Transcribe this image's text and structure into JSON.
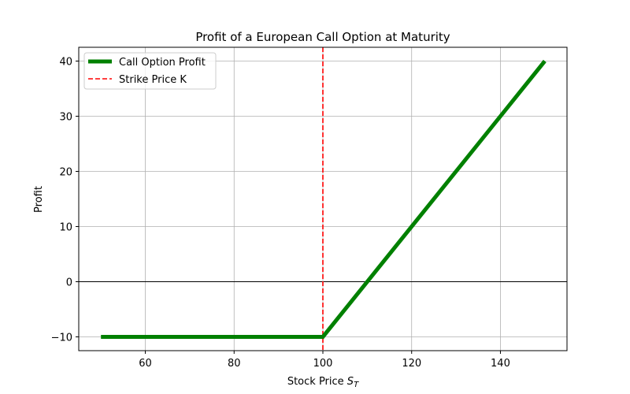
{
  "chart_data": {
    "type": "line",
    "title": "Profit of a European Call Option at Maturity",
    "xlabel": "Stock Price",
    "xlabel_symbol": "S",
    "xlabel_subscript": "T",
    "ylabel": "Profit",
    "xlim": [
      45,
      155
    ],
    "ylim": [
      -12.5,
      42.5
    ],
    "x_ticks": [
      60,
      80,
      100,
      120,
      140
    ],
    "y_ticks": [
      -10,
      0,
      10,
      20,
      30,
      40
    ],
    "y_tick_labels": [
      "−10",
      "0",
      "10",
      "20",
      "30",
      "40"
    ],
    "grid": true,
    "legend_position": "top-left",
    "series": [
      {
        "name": "Call Option Profit",
        "color": "#008000",
        "style": "solid",
        "x": [
          50,
          100,
          150
        ],
        "y": [
          -10,
          -10,
          40
        ]
      }
    ],
    "vlines": [
      {
        "name": "Strike Price K",
        "x": 100,
        "color": "#ff0000",
        "style": "dashed"
      }
    ],
    "hlines": [
      {
        "y": 0,
        "color": "#000000",
        "style": "solid"
      }
    ]
  }
}
